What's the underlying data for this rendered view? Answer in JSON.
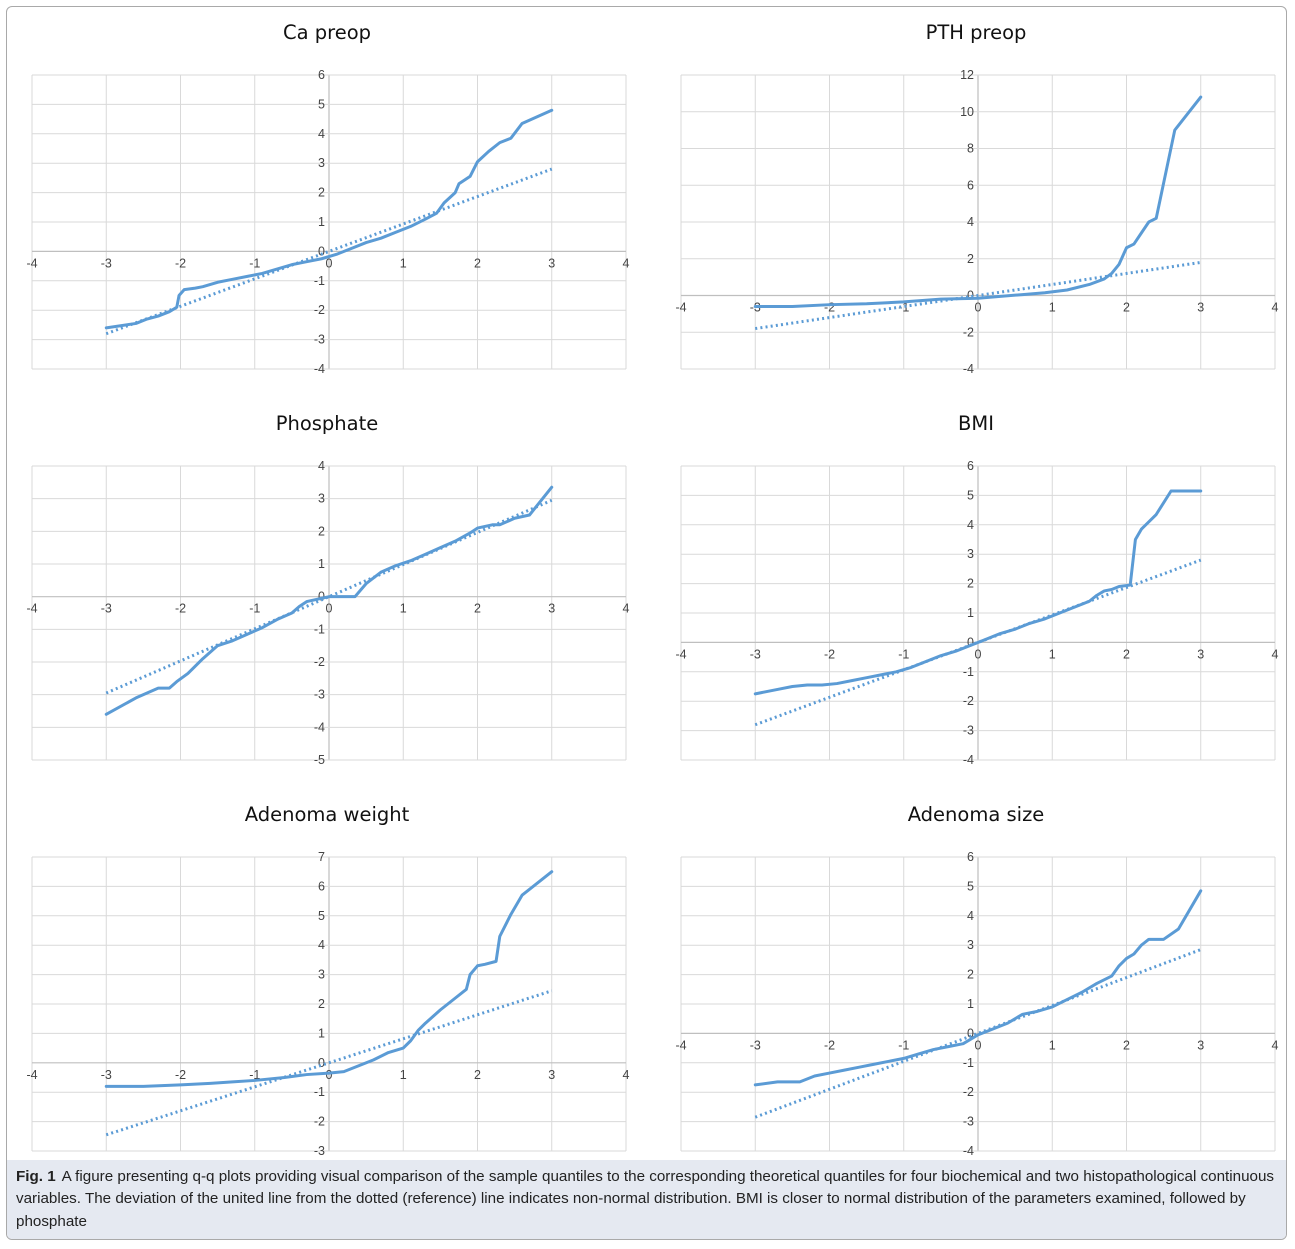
{
  "colors": {
    "series": "#5b9bd5",
    "caption_bg": "#e5e9f1"
  },
  "caption": {
    "label": "Fig. 1",
    "text": "A figure presenting q-q plots providing visual comparison of the sample quantiles to the corresponding theoretical quantiles for four biochemical and two histopathological continuous variables. The deviation of the united line from the dotted (reference) line indicates non-normal distribution. BMI is closer to normal distribution of the parameters examined, followed by phosphate"
  },
  "chart_data": [
    {
      "type": "line",
      "title": "Ca preop",
      "grid": true,
      "xlim": [
        -4,
        4
      ],
      "ylim": [
        -4,
        6
      ],
      "xstep": 1,
      "ystep": 1,
      "reference": {
        "x": [
          -3,
          3
        ],
        "y": [
          -2.8,
          2.8
        ]
      },
      "sample": {
        "x": [
          -3,
          -2.6,
          -2.45,
          -2.3,
          -2.15,
          -2.05,
          -2.02,
          -1.95,
          -1.8,
          -1.7,
          -1.5,
          -1.3,
          -1.1,
          -0.9,
          -0.7,
          -0.5,
          -0.3,
          -0.1,
          0.1,
          0.3,
          0.5,
          0.7,
          0.9,
          1.1,
          1.3,
          1.45,
          1.55,
          1.7,
          1.75,
          1.9,
          2.0,
          2.15,
          2.3,
          2.45,
          2.6,
          3.0
        ],
        "y": [
          -2.6,
          -2.45,
          -2.3,
          -2.2,
          -2.05,
          -1.9,
          -1.5,
          -1.3,
          -1.25,
          -1.2,
          -1.05,
          -0.95,
          -0.85,
          -0.75,
          -0.6,
          -0.45,
          -0.35,
          -0.25,
          -0.1,
          0.1,
          0.3,
          0.45,
          0.65,
          0.85,
          1.1,
          1.3,
          1.65,
          2.0,
          2.3,
          2.55,
          3.05,
          3.4,
          3.7,
          3.85,
          4.35,
          4.8
        ]
      }
    },
    {
      "type": "line",
      "title": "PTH preop",
      "grid": true,
      "xlim": [
        -4,
        4
      ],
      "ylim": [
        -4,
        12
      ],
      "xstep": 1,
      "ystep": 2,
      "reference": {
        "x": [
          -3,
          3
        ],
        "y": [
          -1.8,
          1.8
        ]
      },
      "sample": {
        "x": [
          -3,
          -2.5,
          -2.0,
          -1.5,
          -1.0,
          -0.5,
          0.0,
          0.3,
          0.6,
          0.9,
          1.2,
          1.5,
          1.7,
          1.8,
          1.9,
          2.0,
          2.1,
          2.2,
          2.3,
          2.4,
          2.65,
          3.0
        ],
        "y": [
          -0.6,
          -0.6,
          -0.5,
          -0.45,
          -0.35,
          -0.2,
          -0.15,
          -0.05,
          0.05,
          0.15,
          0.3,
          0.6,
          0.9,
          1.2,
          1.7,
          2.6,
          2.8,
          3.4,
          4.0,
          4.2,
          9.0,
          10.8
        ]
      }
    },
    {
      "type": "line",
      "title": "Phosphate",
      "grid": true,
      "xlim": [
        -4,
        4
      ],
      "ylim": [
        -5,
        4
      ],
      "xstep": 1,
      "ystep": 1,
      "reference": {
        "x": [
          -3,
          3
        ],
        "y": [
          -2.95,
          2.95
        ]
      },
      "sample": {
        "x": [
          -3,
          -2.6,
          -2.3,
          -2.15,
          -2.05,
          -1.9,
          -1.7,
          -1.5,
          -1.3,
          -1.1,
          -0.9,
          -0.7,
          -0.5,
          -0.4,
          -0.3,
          -0.1,
          0.0,
          0.35,
          0.5,
          0.7,
          0.9,
          1.1,
          1.3,
          1.5,
          1.7,
          1.9,
          2.0,
          2.2,
          2.3,
          2.5,
          2.7,
          3.0
        ],
        "y": [
          -3.6,
          -3.1,
          -2.8,
          -2.8,
          -2.6,
          -2.35,
          -1.9,
          -1.5,
          -1.35,
          -1.15,
          -0.95,
          -0.7,
          -0.5,
          -0.3,
          -0.15,
          -0.05,
          0.0,
          0.0,
          0.4,
          0.75,
          0.95,
          1.1,
          1.3,
          1.5,
          1.7,
          1.95,
          2.1,
          2.2,
          2.2,
          2.4,
          2.5,
          3.35
        ]
      }
    },
    {
      "type": "line",
      "title": "BMI",
      "grid": true,
      "xlim": [
        -4,
        4
      ],
      "ylim": [
        -4,
        6
      ],
      "xstep": 1,
      "ystep": 1,
      "reference": {
        "x": [
          -3,
          3
        ],
        "y": [
          -2.8,
          2.8
        ]
      },
      "sample": {
        "x": [
          -3,
          -2.7,
          -2.5,
          -2.3,
          -2.1,
          -1.9,
          -1.7,
          -1.5,
          -1.3,
          -1.1,
          -0.9,
          -0.7,
          -0.5,
          -0.3,
          -0.1,
          0.1,
          0.3,
          0.5,
          0.7,
          0.9,
          1.1,
          1.3,
          1.5,
          1.6,
          1.7,
          1.8,
          1.9,
          2.05,
          2.12,
          2.2,
          2.4,
          2.6,
          2.7,
          3.0
        ],
        "y": [
          -1.75,
          -1.6,
          -1.5,
          -1.45,
          -1.45,
          -1.4,
          -1.3,
          -1.2,
          -1.1,
          -1.0,
          -0.85,
          -0.65,
          -0.45,
          -0.3,
          -0.1,
          0.1,
          0.3,
          0.45,
          0.65,
          0.8,
          1.0,
          1.2,
          1.4,
          1.6,
          1.75,
          1.8,
          1.9,
          1.95,
          3.5,
          3.85,
          4.35,
          5.15,
          5.15,
          5.15
        ]
      }
    },
    {
      "type": "line",
      "title": "Adenoma  weight",
      "grid": true,
      "xlim": [
        -4,
        4
      ],
      "ylim": [
        -3,
        7
      ],
      "xstep": 1,
      "ystep": 1,
      "reference": {
        "x": [
          -3,
          3
        ],
        "y": [
          -2.45,
          2.45
        ]
      },
      "sample": {
        "x": [
          -3,
          -2.5,
          -2.0,
          -1.6,
          -1.3,
          -1.0,
          -0.6,
          -0.3,
          0.0,
          0.2,
          0.4,
          0.6,
          0.8,
          1.0,
          1.1,
          1.2,
          1.3,
          1.5,
          1.7,
          1.85,
          1.9,
          2.0,
          2.1,
          2.25,
          2.3,
          2.45,
          2.6,
          3.0
        ],
        "y": [
          -0.8,
          -0.8,
          -0.75,
          -0.7,
          -0.65,
          -0.6,
          -0.5,
          -0.4,
          -0.35,
          -0.3,
          -0.1,
          0.1,
          0.35,
          0.5,
          0.75,
          1.1,
          1.35,
          1.8,
          2.2,
          2.5,
          3.0,
          3.3,
          3.35,
          3.45,
          4.3,
          5.05,
          5.7,
          6.5
        ]
      }
    },
    {
      "type": "line",
      "title": "Adenoma size",
      "grid": true,
      "xlim": [
        -4,
        4
      ],
      "ylim": [
        -4,
        6
      ],
      "xstep": 1,
      "ystep": 1,
      "reference": {
        "x": [
          -3,
          3
        ],
        "y": [
          -2.85,
          2.85
        ]
      },
      "sample": {
        "x": [
          -3,
          -2.7,
          -2.4,
          -2.2,
          -2.0,
          -1.8,
          -1.6,
          -1.4,
          -1.2,
          -1.0,
          -0.8,
          -0.6,
          -0.4,
          -0.2,
          0.0,
          0.2,
          0.4,
          0.6,
          0.8,
          1.0,
          1.2,
          1.4,
          1.6,
          1.8,
          1.9,
          2.0,
          2.1,
          2.2,
          2.3,
          2.5,
          2.7,
          3.0
        ],
        "y": [
          -1.75,
          -1.65,
          -1.65,
          -1.45,
          -1.35,
          -1.25,
          -1.15,
          -1.05,
          -0.95,
          -0.85,
          -0.7,
          -0.55,
          -0.45,
          -0.35,
          -0.05,
          0.15,
          0.35,
          0.65,
          0.75,
          0.9,
          1.15,
          1.4,
          1.7,
          1.95,
          2.3,
          2.55,
          2.7,
          3.0,
          3.2,
          3.2,
          3.55,
          4.85
        ]
      }
    }
  ]
}
